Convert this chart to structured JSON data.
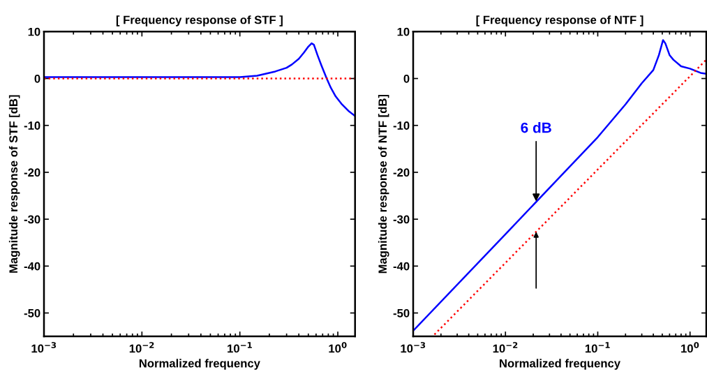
{
  "chart_data": [
    {
      "type": "line",
      "title": "[ Frequency response of STF ]",
      "xlabel": "Normalized frequency",
      "ylabel": "Magnitude response of STF [dB]",
      "log": "x",
      "xlim": [
        0.001,
        1.5
      ],
      "ylim": [
        -55,
        10
      ],
      "xticks": [
        {
          "value": 0.001,
          "label": "10$^{−3}$"
        },
        {
          "value": 0.01,
          "label": "10$^{−2}$"
        },
        {
          "value": 0.1,
          "label": "10$^{−1}$"
        },
        {
          "value": 1,
          "label": "10$^{0}$"
        }
      ],
      "yticks": [
        10,
        0,
        -10,
        -20,
        -30,
        -40,
        -50
      ],
      "grid": false,
      "series": [
        {
          "color": "#0000ff",
          "line_style": "solid",
          "x": [
            0.001,
            0.1,
            0.15,
            0.23,
            0.3,
            0.34,
            0.4,
            0.45,
            0.5,
            0.54,
            0.57,
            0.62,
            0.68,
            0.77,
            0.85,
            0.95,
            1.1,
            1.3,
            1.5
          ],
          "values": [
            0.3,
            0.3,
            0.6,
            1.5,
            2.3,
            3,
            4.2,
            5.5,
            6.8,
            7.5,
            7.2,
            5,
            2.8,
            0,
            -2,
            -3.8,
            -5.5,
            -7,
            -8
          ]
        },
        {
          "color": "#ff0000",
          "line_style": "dotted",
          "x": [
            0.001,
            1.5
          ],
          "values": [
            0,
            0
          ]
        }
      ]
    },
    {
      "type": "line",
      "title": "[ Frequency response of NTF ]",
      "xlabel": "Normalized frequency",
      "ylabel": "Magnitude response of NTF [dB]",
      "log": "x",
      "xlim": [
        0.001,
        1.5
      ],
      "ylim": [
        -55,
        10
      ],
      "xticks": [
        {
          "value": 0.001,
          "label": "10$^{−3}$"
        },
        {
          "value": 0.01,
          "label": "10$^{−2}$"
        },
        {
          "value": 0.1,
          "label": "10$^{−1}$"
        },
        {
          "value": 1,
          "label": "10$^{0}$"
        }
      ],
      "yticks": [
        10,
        0,
        -10,
        -20,
        -30,
        -40,
        -50
      ],
      "grid": false,
      "annotations": [
        {
          "text": "6 dB",
          "x": 0.0215,
          "y": -26.2
        }
      ],
      "series": [
        {
          "color": "#0000ff",
          "line_style": "solid",
          "x": [
            0.001,
            0.01,
            0.1,
            0.2,
            0.3,
            0.4,
            0.46,
            0.51,
            0.54,
            0.6,
            0.66,
            0.8,
            1.0,
            1.3,
            1.5
          ],
          "values": [
            -53.8,
            -33.2,
            -12.5,
            -5.5,
            -1,
            1.8,
            5,
            8.2,
            7.5,
            5,
            4,
            2.6,
            2.1,
            1.2,
            1
          ]
        },
        {
          "color": "#ff0000",
          "line_style": "dotted",
          "x": [
            0.0017,
            0.01,
            0.1,
            1,
            1.5
          ],
          "values": [
            -54.6,
            -39.3,
            -19.4,
            0.5,
            4
          ]
        }
      ]
    }
  ]
}
